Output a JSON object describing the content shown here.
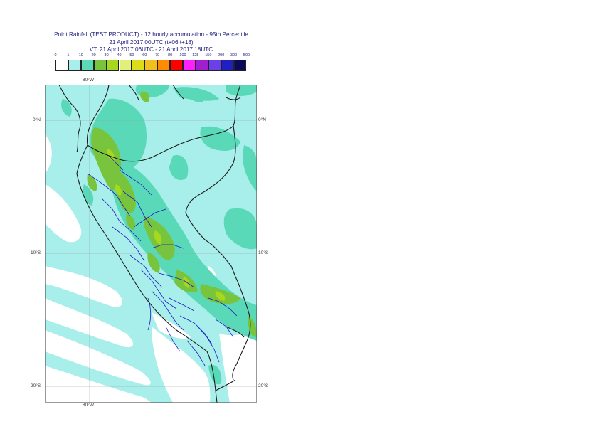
{
  "title": {
    "line1": "Point Rainfall (TEST PRODUCT) - 12 hourly accumulation - 95th Percentile",
    "line2": "21 April 2017 00UTC (t+06,t+18)",
    "line3": "VT: 21 April 2017 06UTC - 21 April 2017 18UTC"
  },
  "legend": {
    "labels": [
      "0",
      "1",
      "10",
      "20",
      "30",
      "40",
      "50",
      "60",
      "70",
      "80",
      "100",
      "125",
      "150",
      "200",
      "300",
      "500"
    ],
    "colors": [
      "#ffffff",
      "#a8eeea",
      "#5ad9b8",
      "#78c43c",
      "#a6d81e",
      "#e0f07a",
      "#dcdc1a",
      "#f0c020",
      "#ff8c00",
      "#ff0000",
      "#ff20ff",
      "#a020d0",
      "#6a40e8",
      "#2020c0",
      "#0a0a5a"
    ]
  },
  "map": {
    "lon_labels": [
      "80°W",
      "80°W"
    ],
    "lat_labels": {
      "left": [
        "0°N",
        "10°S",
        "20°S"
      ],
      "right": [
        "0°N",
        "10°S",
        "20°S"
      ]
    },
    "colors": {
      "ocean_light": "#a8eeea",
      "ocean_white": "#ffffff",
      "teal": "#5ad9b8",
      "green": "#78c43c",
      "yellowgreen": "#a6d81e",
      "country_border": "#1a1a1a",
      "region_border": "#1a1ac8",
      "gridline": "#999999"
    }
  }
}
